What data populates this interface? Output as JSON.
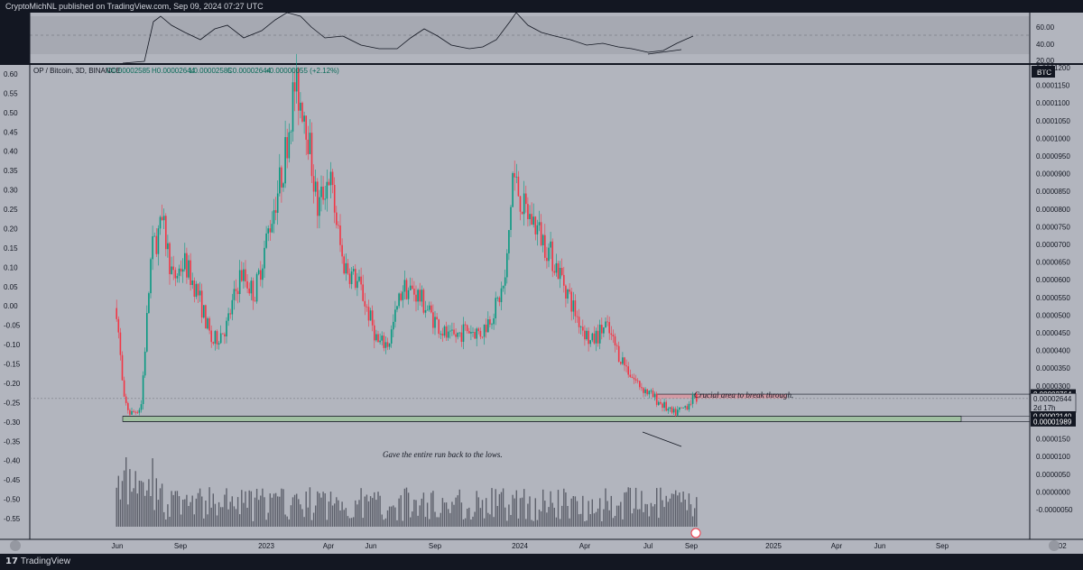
{
  "header": {
    "publisher_line": "CryptoMichNL published on TradingView.com, Sep 09, 2024 07:27 UTC"
  },
  "footer": {
    "logo_text": "TradingView"
  },
  "legend": {
    "symbol": "OP / Bitcoin, 3D, BINANCE",
    "open": "O0.00002585",
    "high": "H0.00002644",
    "low": "L0.00002585",
    "close": "C0.00002644",
    "change": "+0.00000055 (+2.12%)"
  },
  "currency_badge": "BTC",
  "annotations": {
    "crucial": "Crucial area to break through.",
    "gave_back": "Gave the entire run back to the lows."
  },
  "price_tags": {
    "resistance": "0.00002764",
    "last": "0.00002644",
    "countdown": "2d 17h",
    "support_top": "0.00002140",
    "support_bottom": "0.00001989"
  },
  "colors": {
    "background": "#b2b5be",
    "up": "#089981",
    "down": "#f23645",
    "support_zone": "#9fbfa0",
    "resistance_zone": "#d49ba5",
    "panel_dark": "#131722"
  },
  "chart_data": {
    "type": "candlestick",
    "series_name": "OP / Bitcoin, 3D, BINANCE",
    "right_axis": {
      "unit": "BTC",
      "ticks": [
        "0.0001200",
        "0.0001150",
        "0.0001100",
        "0.0001050",
        "0.0001000",
        "0.0000950",
        "0.0000900",
        "0.0000850",
        "0.0000800",
        "0.0000750",
        "0.0000700",
        "0.0000650",
        "0.0000600",
        "0.0000550",
        "0.0000500",
        "0.0000450",
        "0.0000400",
        "0.0000350",
        "0.0000300",
        "0.0000250",
        "0.0000200",
        "0.0000150",
        "0.0000100",
        "0.0000050",
        "0.0000000",
        "-0.0000050"
      ],
      "ylim": [
        -5e-06,
        0.00012
      ]
    },
    "left_axis": {
      "ticks": [
        "0.60",
        "0.55",
        "0.50",
        "0.45",
        "0.40",
        "0.35",
        "0.30",
        "0.25",
        "0.20",
        "0.15",
        "0.10",
        "0.05",
        "0.00",
        "-0.05",
        "-0.10",
        "-0.15",
        "-0.20",
        "-0.25",
        "-0.30",
        "-0.35",
        "-0.40",
        "-0.45",
        "-0.50",
        "-0.55"
      ]
    },
    "x_axis": {
      "ticks": [
        "Jun",
        "Sep",
        "2023",
        "Apr",
        "Jun",
        "Sep",
        "2024",
        "Apr",
        "Jul",
        "Sep",
        "2025",
        "Apr",
        "Jun",
        "Sep",
        "202"
      ],
      "range": [
        "2022-05-31",
        "2026-01-10"
      ]
    },
    "closes_path": [
      {
        "date": "2022-05-31",
        "value": 5.2e-05
      },
      {
        "date": "2022-06-10",
        "value": 2.6e-05
      },
      {
        "date": "2022-06-20",
        "value": 2.2e-05
      },
      {
        "date": "2022-07-05",
        "value": 2.4e-05
      },
      {
        "date": "2022-07-20",
        "value": 6.8e-05
      },
      {
        "date": "2022-08-05",
        "value": 7.6e-05
      },
      {
        "date": "2022-08-20",
        "value": 6e-05
      },
      {
        "date": "2022-09-05",
        "value": 6.5e-05
      },
      {
        "date": "2022-09-25",
        "value": 5.6e-05
      },
      {
        "date": "2022-10-15",
        "value": 4.2e-05
      },
      {
        "date": "2022-11-05",
        "value": 4.7e-05
      },
      {
        "date": "2022-11-25",
        "value": 6.2e-05
      },
      {
        "date": "2022-12-15",
        "value": 5.6e-05
      },
      {
        "date": "2023-01-05",
        "value": 7.5e-05
      },
      {
        "date": "2023-01-25",
        "value": 9.2e-05
      },
      {
        "date": "2023-02-10",
        "value": 0.000115
      },
      {
        "date": "2023-02-25",
        "value": 0.000108
      },
      {
        "date": "2023-03-15",
        "value": 8e-05
      },
      {
        "date": "2023-04-01",
        "value": 9e-05
      },
      {
        "date": "2023-04-20",
        "value": 6.5e-05
      },
      {
        "date": "2023-05-15",
        "value": 5.8e-05
      },
      {
        "date": "2023-06-10",
        "value": 4.2e-05
      },
      {
        "date": "2023-06-25",
        "value": 4.2e-05
      },
      {
        "date": "2023-07-15",
        "value": 5.8e-05
      },
      {
        "date": "2023-08-05",
        "value": 5.6e-05
      },
      {
        "date": "2023-08-25",
        "value": 5e-05
      },
      {
        "date": "2023-09-20",
        "value": 4.3e-05
      },
      {
        "date": "2023-10-15",
        "value": 4.6e-05
      },
      {
        "date": "2023-11-05",
        "value": 4.5e-05
      },
      {
        "date": "2023-11-25",
        "value": 5.2e-05
      },
      {
        "date": "2023-12-10",
        "value": 6e-05
      },
      {
        "date": "2023-12-20",
        "value": 9e-05
      },
      {
        "date": "2024-01-05",
        "value": 8e-05
      },
      {
        "date": "2024-01-20",
        "value": 7.6e-05
      },
      {
        "date": "2024-02-10",
        "value": 6.8e-05
      },
      {
        "date": "2024-03-01",
        "value": 6e-05
      },
      {
        "date": "2024-03-20",
        "value": 5e-05
      },
      {
        "date": "2024-04-10",
        "value": 4.2e-05
      },
      {
        "date": "2024-05-01",
        "value": 4.7e-05
      },
      {
        "date": "2024-05-20",
        "value": 3.9e-05
      },
      {
        "date": "2024-06-10",
        "value": 3.2e-05
      },
      {
        "date": "2024-07-01",
        "value": 2.8e-05
      },
      {
        "date": "2024-07-20",
        "value": 2.5e-05
      },
      {
        "date": "2024-08-05",
        "value": 2.2e-05
      },
      {
        "date": "2024-08-20",
        "value": 2.35e-05
      },
      {
        "date": "2024-09-01",
        "value": 2.6e-05
      },
      {
        "date": "2024-09-09",
        "value": 2.644e-05
      }
    ],
    "levels": {
      "resistance_zone": [
        2.644e-05,
        2.764e-05
      ],
      "support_zone": [
        1.989e-05,
        2.14e-05
      ]
    }
  }
}
